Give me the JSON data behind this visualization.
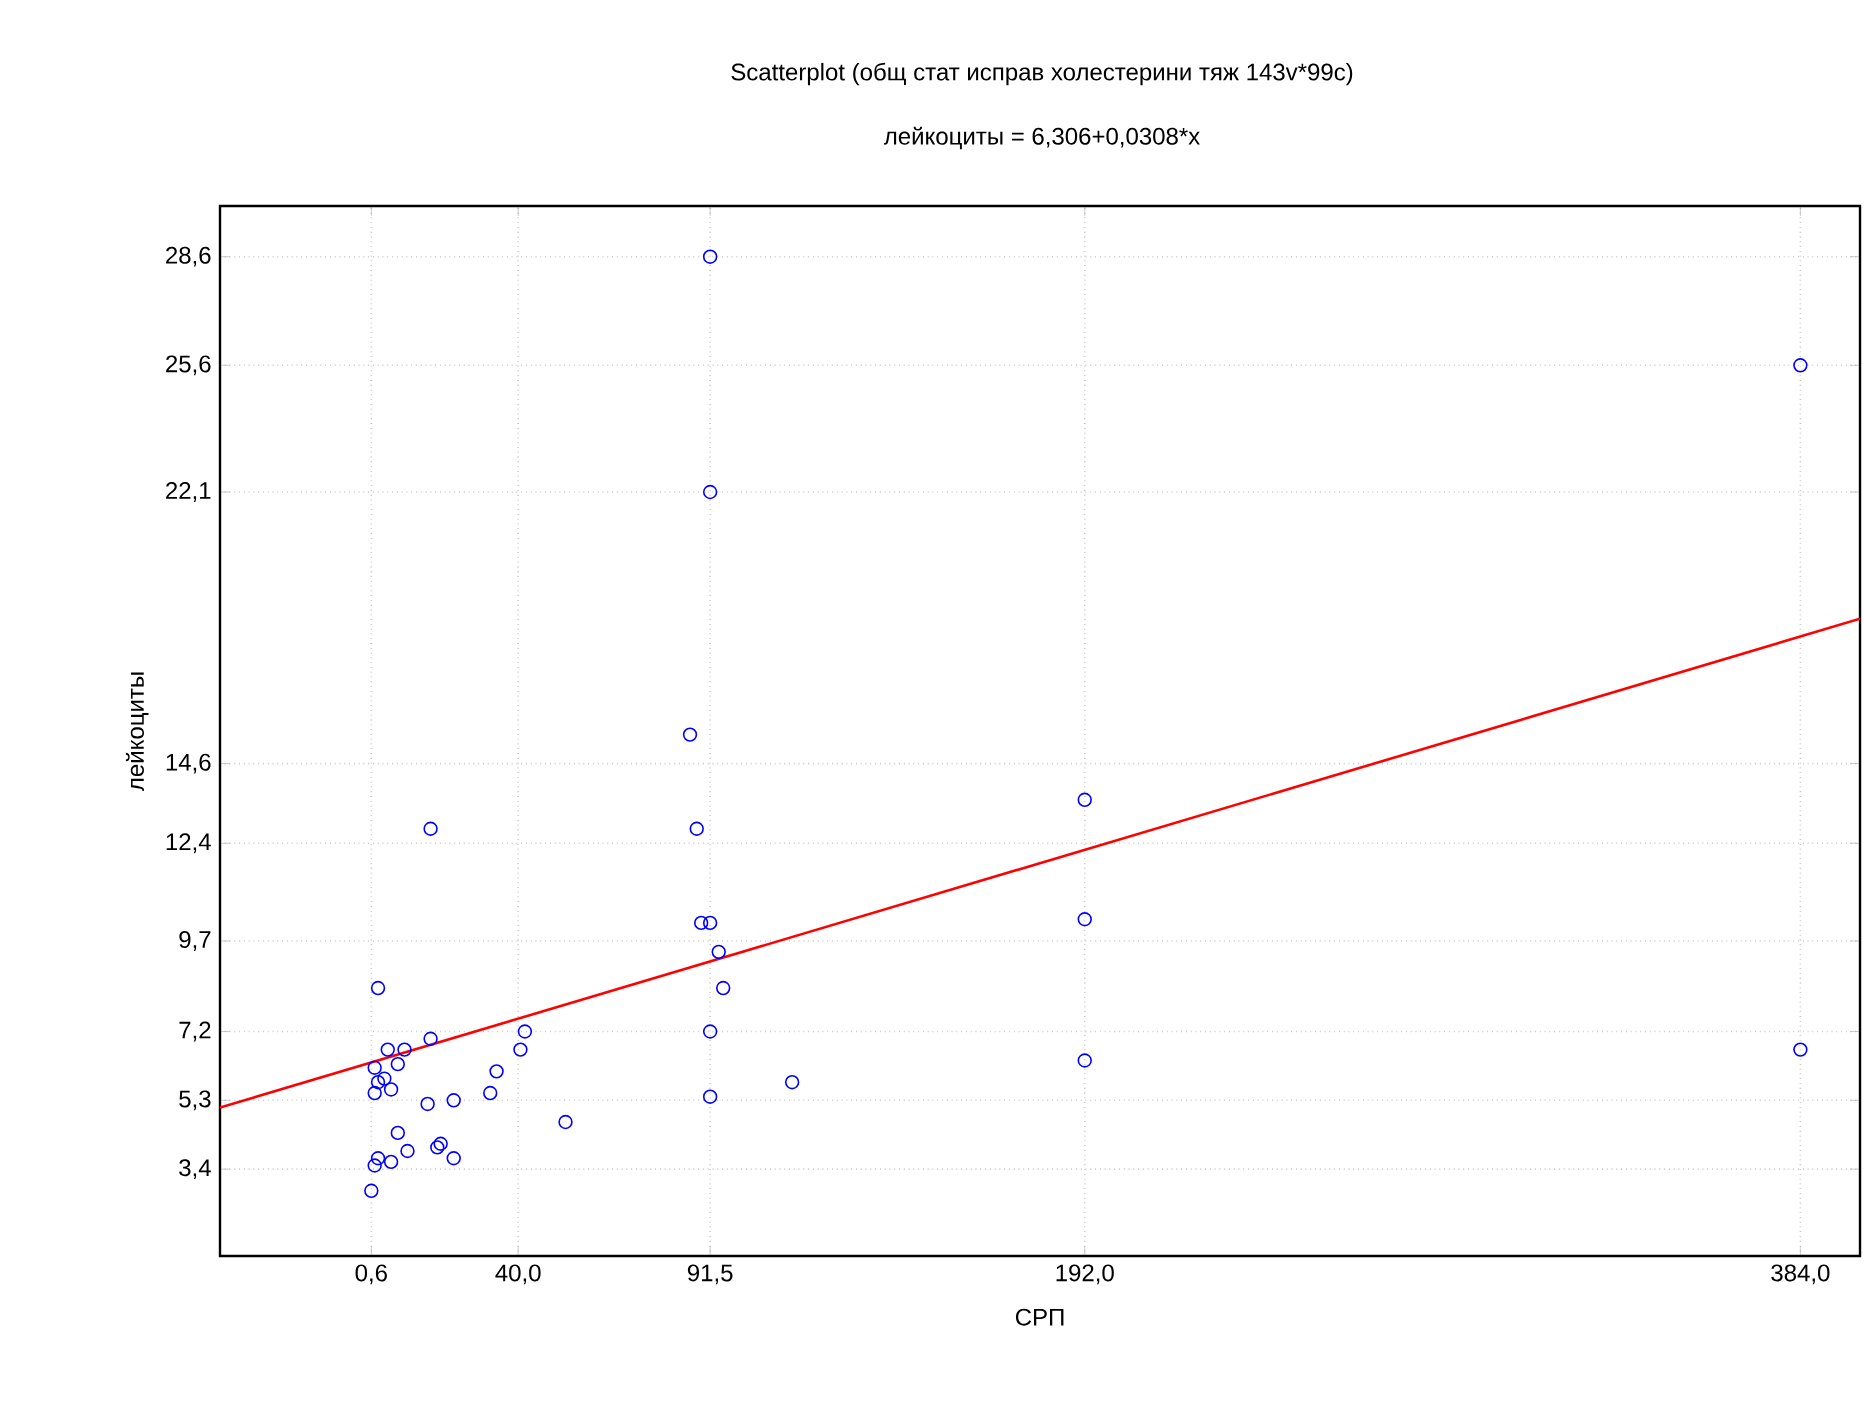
{
  "chart_data": {
    "type": "scatter",
    "title": "Scatterplot (общ стат исправ холестерини тяж 143v*99c)",
    "subtitle": "лейкоциты = 6,306+0,0308*x",
    "xlabel": "СРП",
    "ylabel": "лейкоциты",
    "xlim": [
      -40,
      400
    ],
    "ylim": [
      1,
      30
    ],
    "xticks": [
      {
        "value": 0.6,
        "label": "0,6"
      },
      {
        "value": 40,
        "label": "40,0"
      },
      {
        "value": 91.5,
        "label": "91,5"
      },
      {
        "value": 192,
        "label": "192,0"
      },
      {
        "value": 384,
        "label": "384,0"
      }
    ],
    "yticks": [
      {
        "value": 3.4,
        "label": "3,4"
      },
      {
        "value": 5.3,
        "label": "5,3"
      },
      {
        "value": 7.2,
        "label": "7,2"
      },
      {
        "value": 9.7,
        "label": "9,7"
      },
      {
        "value": 12.4,
        "label": "12,4"
      },
      {
        "value": 14.6,
        "label": "14,6"
      },
      {
        "value": 22.1,
        "label": "22,1"
      },
      {
        "value": 25.6,
        "label": "25,6"
      },
      {
        "value": 28.6,
        "label": "28,6"
      }
    ],
    "grid": true,
    "series": [
      {
        "color": "#0000ff",
        "marker": "circle",
        "x": [
          16.5,
          87.9,
          89.1,
          91.5,
          93.8,
          95.0,
          2.4,
          91.5,
          41.8,
          16.5,
          5.0,
          9.5,
          40.6,
          1.5,
          7.7,
          34.2,
          4.1,
          2.4,
          113.5,
          1.5,
          5.9,
          32.5,
          22.7,
          15.7,
          91.5,
          52.7,
          7.7,
          2.4,
          5.9,
          10.3,
          19.2,
          18.3,
          22.7,
          1.5,
          0.6,
          91.5,
          91.5,
          86.1,
          192,
          192,
          192,
          384,
          384
        ],
        "values": [
          12.8,
          12.8,
          10.2,
          10.2,
          9.4,
          8.4,
          8.4,
          7.2,
          7.2,
          7.0,
          6.7,
          6.7,
          6.7,
          6.2,
          6.3,
          6.1,
          5.9,
          5.8,
          5.8,
          5.5,
          5.6,
          5.5,
          5.3,
          5.2,
          5.4,
          4.7,
          4.4,
          3.7,
          3.6,
          3.9,
          4.1,
          4.0,
          3.7,
          3.5,
          2.8,
          28.6,
          22.1,
          15.4,
          13.6,
          10.3,
          6.4,
          25.6,
          6.7
        ]
      },
      {
        "type": "line",
        "color": "#ff0000",
        "marker": "none",
        "x": [
          -40,
          400
        ],
        "values": [
          5.1,
          18.6
        ]
      }
    ]
  }
}
